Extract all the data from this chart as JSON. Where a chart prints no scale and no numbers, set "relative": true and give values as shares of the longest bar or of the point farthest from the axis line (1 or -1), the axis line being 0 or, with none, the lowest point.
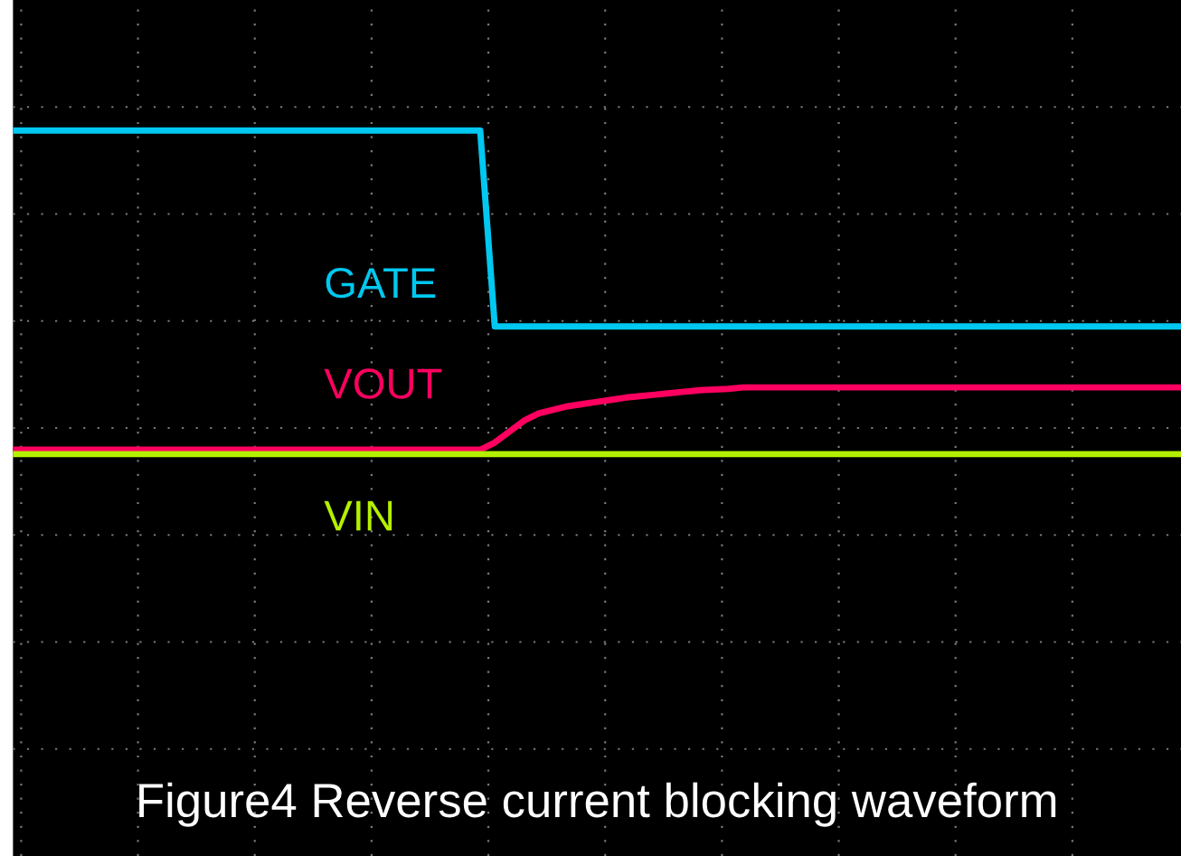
{
  "chart_data": {
    "type": "line",
    "relative": true,
    "grid": true,
    "title": "Figure4 Reverse current blocking waveform",
    "categories": [
      null,
      null,
      null,
      null,
      null,
      null,
      null,
      null,
      null,
      null,
      null,
      null,
      null,
      null,
      null,
      null,
      null,
      null,
      null,
      null,
      null,
      null,
      null,
      null,
      null,
      null,
      null,
      null,
      null,
      null,
      null,
      null,
      null,
      null,
      null,
      null,
      null,
      null,
      null,
      null,
      null,
      null,
      null,
      null,
      null,
      null,
      null,
      null,
      null,
      null,
      null,
      null,
      null,
      null,
      null,
      null,
      null,
      null,
      null,
      null,
      null,
      null,
      null,
      null,
      null,
      null,
      null,
      null,
      null,
      null,
      null,
      null,
      null,
      null,
      null,
      null,
      null,
      null,
      null,
      null,
      null
    ],
    "series": [
      {
        "name": "GATE",
        "color": "#00c8f0",
        "values": [
          1,
          1,
          1,
          1,
          1,
          1,
          1,
          1,
          1,
          1,
          1,
          1,
          1,
          1,
          1,
          1,
          1,
          1,
          1,
          1,
          1,
          1,
          1,
          1,
          1,
          1,
          1,
          1,
          1,
          1,
          1,
          1,
          1,
          0.73,
          0.73,
          0.73,
          0.73,
          0.73,
          0.73,
          0.73,
          0.73,
          0.73,
          0.73,
          0.73,
          0.73,
          0.73,
          0.73,
          0.73,
          0.73,
          0.73,
          0.73,
          0.73,
          0.73,
          0.73,
          0.73,
          0.73,
          0.73,
          0.73,
          0.73,
          0.73,
          0.73,
          0.73,
          0.73,
          0.73,
          0.73,
          0.73,
          0.73,
          0.73,
          0.73,
          0.73,
          0.73,
          0.73,
          0.73,
          0.73,
          0.73,
          0.73,
          0.73,
          0.73,
          0.73,
          0.73,
          0.73
        ]
      },
      {
        "name": "VOUT",
        "color": "#ff0060",
        "values": [
          0.56,
          0.56,
          0.56,
          0.56,
          0.56,
          0.56,
          0.56,
          0.56,
          0.56,
          0.56,
          0.56,
          0.56,
          0.56,
          0.56,
          0.56,
          0.56,
          0.56,
          0.56,
          0.56,
          0.56,
          0.56,
          0.56,
          0.56,
          0.56,
          0.56,
          0.56,
          0.56,
          0.56,
          0.56,
          0.56,
          0.56,
          0.56,
          0.56,
          0.57,
          0.585,
          0.6,
          0.61,
          0.615,
          0.62,
          0.623,
          0.626,
          0.629,
          0.632,
          0.634,
          0.636,
          0.638,
          0.64,
          0.642,
          0.643,
          0.644,
          0.646,
          0.646,
          0.646,
          0.646,
          0.646,
          0.646,
          0.646,
          0.646,
          0.646,
          0.646,
          0.646,
          0.646,
          0.646,
          0.646,
          0.646,
          0.646,
          0.646,
          0.646,
          0.646,
          0.646,
          0.646,
          0.646,
          0.646,
          0.646,
          0.646,
          0.646,
          0.646,
          0.646,
          0.646,
          0.646,
          0.646
        ]
      },
      {
        "name": "VIN",
        "color": "#b4f000",
        "values": [
          0.554,
          0.554,
          0.554,
          0.554,
          0.554,
          0.554,
          0.554,
          0.554,
          0.554,
          0.554,
          0.554,
          0.554,
          0.554,
          0.554,
          0.554,
          0.554,
          0.554,
          0.554,
          0.554,
          0.554,
          0.554,
          0.554,
          0.554,
          0.554,
          0.554,
          0.554,
          0.554,
          0.554,
          0.554,
          0.554,
          0.554,
          0.554,
          0.554,
          0.554,
          0.554,
          0.554,
          0.554,
          0.554,
          0.554,
          0.554,
          0.554,
          0.554,
          0.554,
          0.554,
          0.554,
          0.554,
          0.554,
          0.554,
          0.554,
          0.554,
          0.554,
          0.554,
          0.554,
          0.554,
          0.554,
          0.554,
          0.554,
          0.554,
          0.554,
          0.554,
          0.554,
          0.554,
          0.554,
          0.554,
          0.554,
          0.554,
          0.554,
          0.554,
          0.554,
          0.554,
          0.554,
          0.554,
          0.554,
          0.554,
          0.554,
          0.554,
          0.554,
          0.554,
          0.554,
          0.554,
          0.554
        ]
      }
    ]
  }
}
